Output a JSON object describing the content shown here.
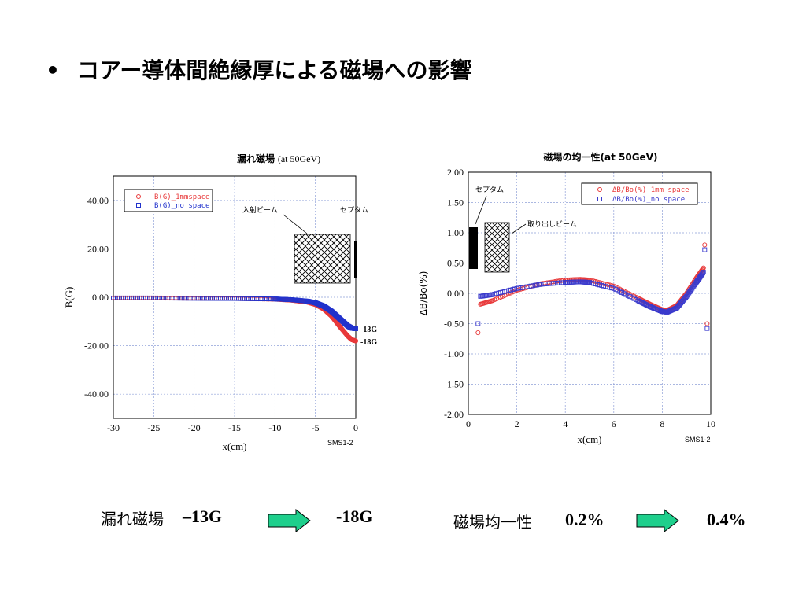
{
  "heading": {
    "bullet": "•",
    "text": "コアー導体間絶縁厚による磁場への影響"
  },
  "chart_data": [
    {
      "type": "line",
      "title": "漏れ磁場",
      "subtitle": "(at 50GeV)",
      "xlabel": "x(cm)",
      "ylabel": "B(G)",
      "xlim": [
        -30,
        0
      ],
      "ylim": [
        -50,
        50
      ],
      "xticks": [
        "-30",
        "-25",
        "-20",
        "-15",
        "-10",
        "-5",
        "0"
      ],
      "yticks": [
        "40.00",
        "20.00",
        "0.00",
        "-20.00",
        "-40.00"
      ],
      "grid": true,
      "legend_position": "top-left",
      "series": [
        {
          "name": "B(G)_1mmspace",
          "color": "#e8393a",
          "x": [
            -30,
            -25,
            -20,
            -15,
            -10,
            -8,
            -6,
            -5,
            -4,
            -3,
            -2,
            -1,
            -0.5,
            0
          ],
          "y": [
            -0.3,
            -0.3,
            -0.4,
            -0.5,
            -0.8,
            -1.2,
            -2,
            -3,
            -4.8,
            -7.8,
            -12,
            -16,
            -17.5,
            -18
          ]
        },
        {
          "name": "B(G)_no space",
          "color": "#2233cc",
          "x": [
            -30,
            -25,
            -20,
            -15,
            -10,
            -8,
            -6,
            -5,
            -4,
            -3,
            -2,
            -1,
            -0.5,
            0
          ],
          "y": [
            -0.3,
            -0.3,
            -0.4,
            -0.5,
            -0.7,
            -1,
            -1.6,
            -2.3,
            -3.6,
            -5.8,
            -8.8,
            -11.8,
            -12.7,
            -13
          ]
        }
      ],
      "annotations": {
        "beam": "入射ビーム",
        "septum": "セプタム",
        "end_high": "-13G",
        "end_low": "-18G",
        "code": "SMS1-2"
      }
    },
    {
      "type": "scatter",
      "title": "磁場の均一性(at 50GeV)",
      "xlabel": "x(cm)",
      "ylabel": "ΔB/Bo(%)",
      "xlim": [
        0,
        10
      ],
      "ylim": [
        -2,
        2
      ],
      "xticks": [
        "0",
        "2",
        "4",
        "6",
        "8",
        "10"
      ],
      "yticks": [
        "2.00",
        "1.50",
        "1.00",
        "0.50",
        "0.00",
        "-0.50",
        "-1.00",
        "-1.50",
        "-2.00"
      ],
      "grid": true,
      "legend_position": "top-right",
      "series": [
        {
          "name": "ΔB/Bo(%)_1mm space",
          "color": "#e8393a",
          "x": [
            0.5,
            1,
            2,
            3,
            4,
            4.6,
            5,
            6,
            7,
            7.5,
            8,
            8.2,
            8.6,
            9,
            9.4,
            9.7
          ],
          "y": [
            -0.18,
            -0.12,
            0.05,
            0.16,
            0.22,
            0.23,
            0.22,
            0.12,
            -0.08,
            -0.18,
            -0.27,
            -0.28,
            -0.2,
            0.0,
            0.25,
            0.42
          ]
        },
        {
          "name": "ΔB/Bo(%)_no space",
          "color": "#3a3acc",
          "x": [
            0.5,
            1,
            2,
            3,
            4,
            4.6,
            5,
            6,
            7,
            7.5,
            8,
            8.2,
            8.6,
            9,
            9.4,
            9.7
          ],
          "y": [
            -0.05,
            -0.02,
            0.08,
            0.15,
            0.18,
            0.19,
            0.18,
            0.08,
            -0.12,
            -0.22,
            -0.3,
            -0.31,
            -0.24,
            -0.05,
            0.18,
            0.35
          ]
        }
      ],
      "outliers": [
        {
          "series": 0,
          "x": 0.4,
          "y": -0.65
        },
        {
          "series": 1,
          "x": 0.4,
          "y": -0.5
        },
        {
          "series": 0,
          "x": 9.75,
          "y": 0.8
        },
        {
          "series": 1,
          "x": 9.75,
          "y": 0.72
        },
        {
          "series": 0,
          "x": 9.85,
          "y": -0.5
        },
        {
          "series": 1,
          "x": 9.85,
          "y": -0.58
        }
      ],
      "annotations": {
        "septum": "セプタム",
        "beam": "取り出しビーム",
        "code": "SMS1-2"
      }
    }
  ],
  "summary": {
    "leak_label": "漏れ磁場",
    "leak_from": "–13G",
    "leak_to": "-18G",
    "uni_label": "磁場均一性",
    "uni_from": "0.2%",
    "uni_to": "0.4%"
  },
  "arrow_color": "#1ecf8c"
}
